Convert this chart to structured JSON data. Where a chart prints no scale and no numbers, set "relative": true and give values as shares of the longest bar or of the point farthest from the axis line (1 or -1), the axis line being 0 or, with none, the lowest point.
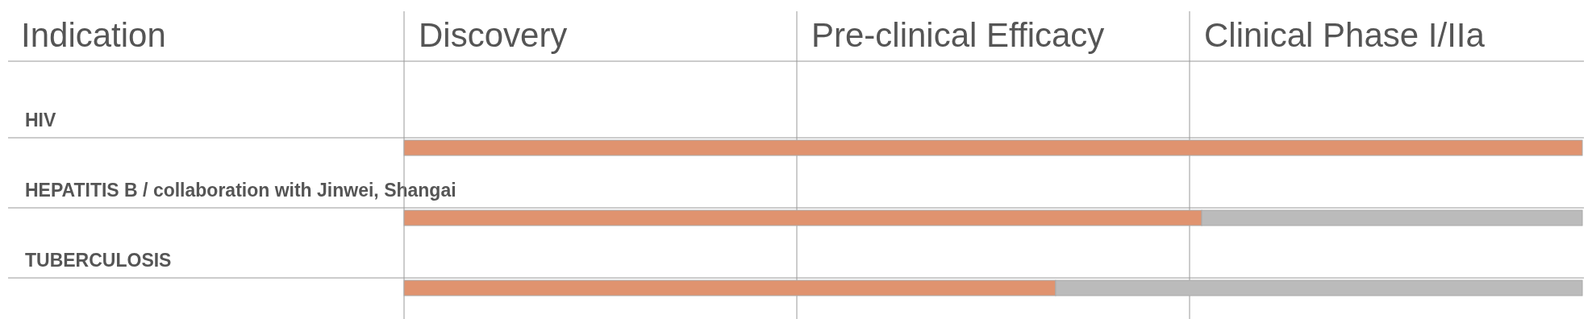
{
  "chart_data": {
    "type": "bar",
    "orientation": "horizontal",
    "stacked": true,
    "relative": true,
    "ylabel": "Indication",
    "categories": [
      "HIV",
      "HEPATITIS B / collaboration with Jinwei, Shangai",
      "TUBERCULOSIS"
    ],
    "series": [
      {
        "color": "#e0936f",
        "values": [
          1,
          0.677,
          0.553
        ]
      },
      {
        "color": "#bbbbbb",
        "values": [
          0,
          0.323,
          0.447
        ]
      }
    ],
    "annotations": [
      "Discovery",
      "Pre-clinical Efficacy",
      "Clinical Phase I/IIa"
    ]
  }
}
